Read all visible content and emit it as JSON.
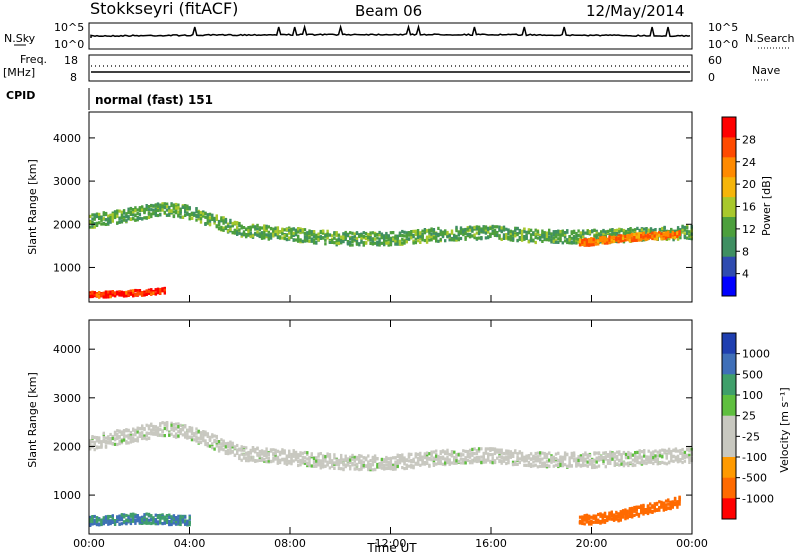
{
  "header": {
    "title": "Stokkseyri (fitACF)",
    "beam": "Beam 06",
    "date": "12/May/2014"
  },
  "top_panels": {
    "nsky_label": "N.Sky",
    "nsearch_label": "N.Search",
    "nsky_ticks": [
      "10^5",
      "10^0"
    ],
    "nsearch_ticks": [
      "10^5",
      "10^0"
    ],
    "freq_label": "Freq.",
    "freq_unit": "[MHz]",
    "freq_ticks": [
      "18",
      "8"
    ],
    "nave_label": "Nave",
    "nave_ticks": [
      "60",
      "0"
    ],
    "cpid_label": "CPID",
    "cpid_value": "normal (fast) 151"
  },
  "colors": {
    "power": [
      "#0000ff",
      "#2f4bb0",
      "#3f8f62",
      "#4c9f3c",
      "#a8c82c",
      "#f5b50a",
      "#ff8a00",
      "#ff4a00",
      "#ff0000"
    ],
    "velocity": [
      "#1f3fb0",
      "#3f6fb8",
      "#3f9f6a",
      "#5fbf3f",
      "#c8c8c0",
      "#c8c8c0",
      "#ff9a00",
      "#ff6a00",
      "#ff0000"
    ]
  },
  "chart_data": [
    {
      "type": "heatmap",
      "name": "power",
      "ylabel": "Slant Range [km]",
      "ylim": [
        200,
        4600
      ],
      "xlim": [
        0,
        24
      ],
      "yticks": [
        "1000",
        "2000",
        "3000",
        "4000"
      ],
      "colorbar_label": "Power [dB]",
      "colorbar_ticks": [
        "4",
        "8",
        "12",
        "16",
        "20",
        "24",
        "28"
      ],
      "colorbar_range": [
        0,
        32
      ],
      "echo_bands": [
        {
          "desc": "main echo band",
          "points": [
            [
              0,
              2100
            ],
            [
              2,
              2300
            ],
            [
              3,
              2400
            ],
            [
              4,
              2300
            ],
            [
              5,
              2100
            ],
            [
              6,
              1900
            ],
            [
              8,
              1800
            ],
            [
              10,
              1700
            ],
            [
              12,
              1700
            ],
            [
              14,
              1800
            ],
            [
              16,
              1850
            ],
            [
              18,
              1750
            ],
            [
              20,
              1750
            ],
            [
              22,
              1800
            ],
            [
              24,
              1850
            ]
          ],
          "width": 300,
          "level": 12
        },
        {
          "desc": "strong near range",
          "points": [
            [
              0,
              400
            ],
            [
              1,
              420
            ],
            [
              2,
              450
            ],
            [
              3,
              500
            ]
          ],
          "width": 120,
          "level": 28
        },
        {
          "desc": "strong late band",
          "points": [
            [
              19.5,
              1600
            ],
            [
              21,
              1700
            ],
            [
              22,
              1750
            ],
            [
              23.5,
              1800
            ]
          ],
          "width": 150,
          "level": 24
        }
      ]
    },
    {
      "type": "heatmap",
      "name": "velocity",
      "ylabel": "Slant Range [km]",
      "xlabel": "Time UT",
      "ylim": [
        200,
        4600
      ],
      "xlim": [
        0,
        24
      ],
      "yticks": [
        "1000",
        "2000",
        "3000",
        "4000"
      ],
      "xticks": [
        "00:00",
        "04:00",
        "08:00",
        "12:00",
        "16:00",
        "20:00",
        "00:00"
      ],
      "colorbar_label": "Velocity [m s⁻¹]",
      "colorbar_ticks": [
        "1000",
        "500",
        "100",
        "25",
        "-25",
        "-100",
        "-500",
        "-1000"
      ],
      "echo_bands": [
        {
          "desc": "ground scatter band",
          "points": [
            [
              0,
              2100
            ],
            [
              2,
              2300
            ],
            [
              3,
              2400
            ],
            [
              4,
              2300
            ],
            [
              5,
              2100
            ],
            [
              6,
              1900
            ],
            [
              8,
              1800
            ],
            [
              10,
              1700
            ],
            [
              12,
              1700
            ],
            [
              14,
              1800
            ],
            [
              16,
              1850
            ],
            [
              18,
              1750
            ],
            [
              20,
              1750
            ],
            [
              22,
              1800
            ],
            [
              24,
              1850
            ]
          ],
          "width": 300,
          "level": 0
        },
        {
          "desc": "positive near range",
          "points": [
            [
              0,
              500
            ],
            [
              2,
              550
            ],
            [
              4,
              500
            ]
          ],
          "width": 200,
          "level": 300
        },
        {
          "desc": "negative late band",
          "points": [
            [
              19.5,
              500
            ],
            [
              21,
              600
            ],
            [
              23.5,
              900
            ]
          ],
          "width": 200,
          "level": -700
        }
      ]
    }
  ]
}
